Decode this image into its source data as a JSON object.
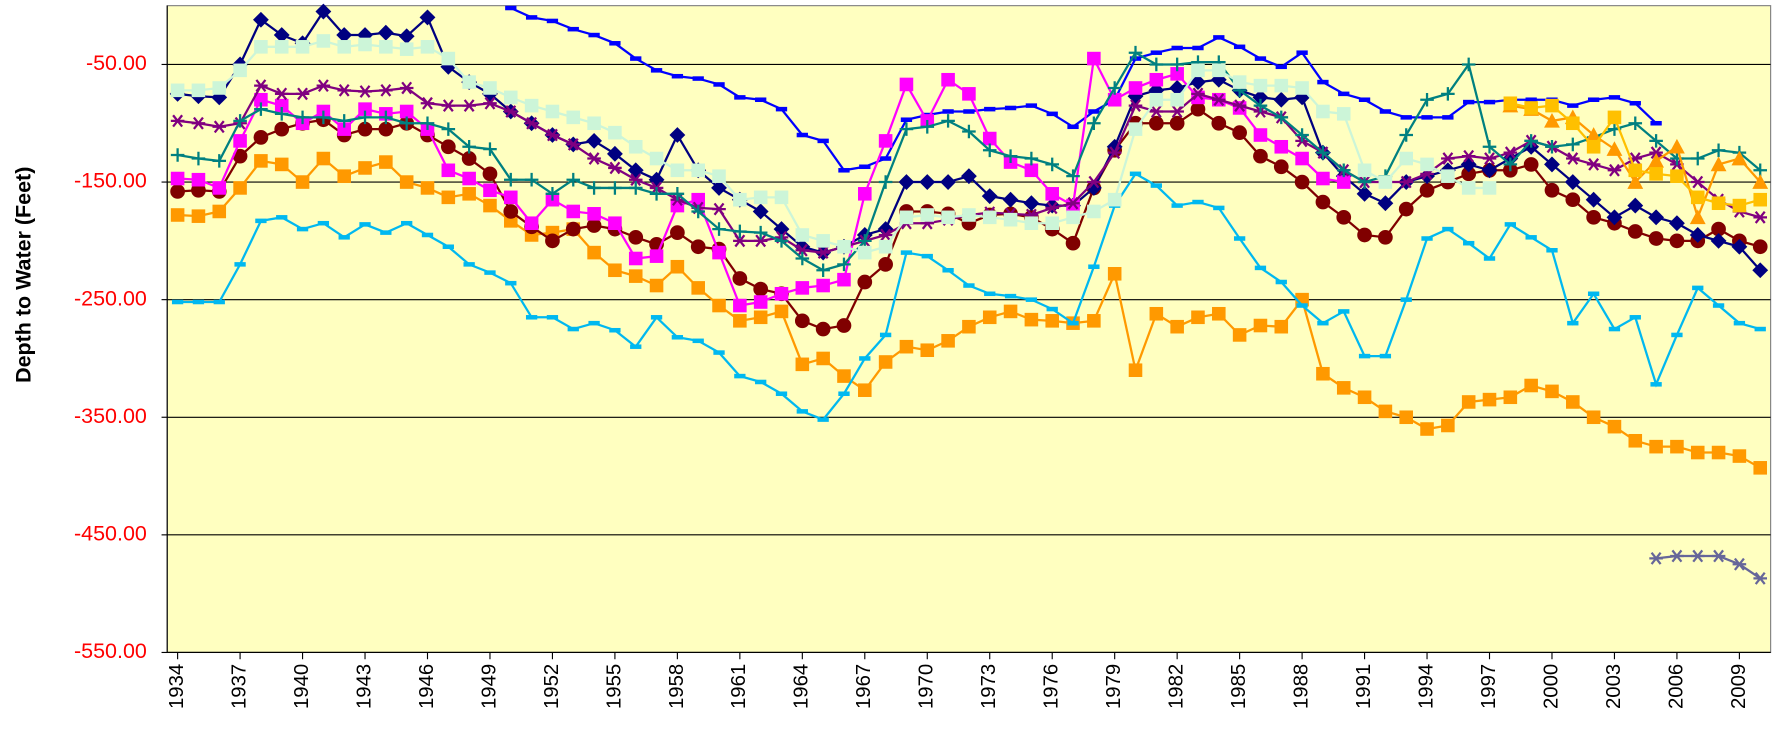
{
  "chart_data": {
    "type": "line",
    "y_label": "Depth to Water (Feet)",
    "x": [
      1934,
      1935,
      1936,
      1937,
      1938,
      1939,
      1940,
      1941,
      1942,
      1943,
      1944,
      1945,
      1946,
      1947,
      1948,
      1949,
      1950,
      1951,
      1952,
      1953,
      1954,
      1955,
      1956,
      1957,
      1958,
      1959,
      1960,
      1961,
      1962,
      1963,
      1964,
      1965,
      1966,
      1967,
      1968,
      1969,
      1970,
      1971,
      1972,
      1973,
      1974,
      1975,
      1976,
      1977,
      1978,
      1979,
      1980,
      1981,
      1982,
      1983,
      1984,
      1985,
      1986,
      1987,
      1988,
      1989,
      1990,
      1991,
      1992,
      1993,
      1994,
      1995,
      1996,
      1997,
      1998,
      1999,
      2000,
      2001,
      2002,
      2003,
      2004,
      2005,
      2006,
      2007,
      2008,
      2009,
      2010
    ],
    "xlim": [
      1933.5,
      2010.5
    ],
    "xticks": [
      1934,
      1937,
      1940,
      1943,
      1946,
      1949,
      1952,
      1955,
      1958,
      1961,
      1964,
      1967,
      1970,
      1973,
      1976,
      1979,
      1982,
      1985,
      1988,
      1991,
      1994,
      1997,
      2000,
      2003,
      2006,
      2009
    ],
    "ylim": [
      -550,
      0
    ],
    "yticks": [
      {
        "value": -50,
        "label": "-50.00"
      },
      {
        "value": -150,
        "label": "-150.00"
      },
      {
        "value": -250,
        "label": "-250.00"
      },
      {
        "value": -350,
        "label": "-350.00"
      },
      {
        "value": -450,
        "label": "-450.00"
      },
      {
        "value": -550,
        "label": "-550.00"
      }
    ],
    "grid": true,
    "background": "#ffffc0",
    "series": [
      {
        "color": "#ff9900",
        "marker": "square",
        "values": [
          -178,
          -179,
          -175,
          -155,
          -132,
          -135,
          -150,
          -130,
          -145,
          -138,
          -133,
          -150,
          -155,
          -163,
          -160,
          -170,
          -183,
          -195,
          -193,
          -190,
          -210,
          -225,
          -230,
          -238,
          -222,
          -240,
          -255,
          -268,
          -265,
          -260,
          -305,
          -300,
          -315,
          -327,
          -303,
          -290,
          -293,
          -285,
          -273,
          -265,
          -260,
          -267,
          -268,
          -270,
          -268,
          -228,
          -310,
          -262,
          -273,
          -265,
          -262,
          -280,
          -272,
          -273,
          -250,
          -313,
          -325,
          -333,
          -345,
          -350,
          -360,
          -357,
          -337,
          -335,
          -333,
          -323,
          -328,
          -337,
          -350,
          -358,
          -370,
          -375,
          -375,
          -380,
          -380,
          -383,
          -393
        ]
      },
      {
        "color": "#00b8f0",
        "marker": "dash",
        "values": [
          -252,
          -252,
          -252,
          -220,
          -183,
          -180,
          -190,
          -185,
          -197,
          -186,
          -193,
          -185,
          -195,
          -205,
          -220,
          -227,
          -236,
          -265,
          -265,
          -275,
          -270,
          -276,
          -290,
          -265,
          -282,
          -285,
          -295,
          -315,
          -320,
          -330,
          -345,
          -352,
          -330,
          -300,
          -280,
          -210,
          -213,
          -225,
          -238,
          -245,
          -247,
          -250,
          -258,
          -270,
          -222,
          -170,
          -143,
          -153,
          -170,
          -167,
          -172,
          -198,
          -223,
          -235,
          -255,
          -270,
          -260,
          -298,
          -298,
          -250,
          -198,
          -190,
          -202,
          -215,
          -186,
          -197,
          -208,
          -270,
          -245,
          -275,
          -265,
          -322,
          -280,
          -240,
          -255,
          -270,
          -275
        ]
      },
      {
        "color": "#800000",
        "marker": "circle",
        "values": [
          -158,
          -157,
          -158,
          -128,
          -112,
          -105,
          -100,
          -97,
          -110,
          -105,
          -105,
          -100,
          -110,
          -120,
          -130,
          -143,
          -175,
          -188,
          -200,
          -190,
          -187,
          -190,
          -197,
          -203,
          -193,
          -205,
          -207,
          -232,
          -241,
          -245,
          -268,
          -275,
          -272,
          -235,
          -220,
          -175,
          -175,
          -177,
          -185,
          -178,
          -177,
          -180,
          -190,
          -202,
          -155,
          -123,
          -100,
          -100,
          -100,
          -88,
          -100,
          -108,
          -128,
          -137,
          -150,
          -167,
          -180,
          -195,
          -197,
          -173,
          -157,
          -150,
          -143,
          -140,
          -140,
          -135,
          -157,
          -165,
          -180,
          -185,
          -192,
          -198,
          -200,
          -200,
          -190,
          -200,
          -205
        ]
      },
      {
        "color": "#000080",
        "marker": "diamond",
        "values": [
          -75,
          -77,
          -78,
          -50,
          -12,
          -25,
          -32,
          -5,
          -25,
          -25,
          -23,
          -26,
          -10,
          -52,
          -65,
          -75,
          -90,
          -100,
          -110,
          -118,
          -115,
          -126,
          -140,
          -148,
          -110,
          -140,
          -155,
          -165,
          -175,
          -190,
          -205,
          -210,
          -205,
          -195,
          -190,
          -150,
          -150,
          -150,
          -145,
          -162,
          -165,
          -168,
          -170,
          -170,
          -155,
          -120,
          -77,
          -72,
          -70,
          -65,
          -63,
          -72,
          -78,
          -80,
          -78,
          -125,
          -145,
          -160,
          -168,
          -150,
          -145,
          -140,
          -135,
          -140,
          -130,
          -120,
          -135,
          -150,
          -165,
          -180,
          -170,
          -180,
          -185,
          -195,
          -200,
          -205,
          -225
        ]
      },
      {
        "color": "#0000ff",
        "marker": "dash",
        "values": [
          null,
          null,
          null,
          null,
          null,
          null,
          null,
          null,
          null,
          null,
          null,
          null,
          null,
          null,
          null,
          null,
          -2,
          -10,
          -13,
          -20,
          -25,
          -32,
          -45,
          -55,
          -60,
          -62,
          -67,
          -78,
          -80,
          -88,
          -110,
          -115,
          -140,
          -137,
          -130,
          -97,
          -93,
          -90,
          -90,
          -88,
          -87,
          -85,
          -92,
          -103,
          -90,
          -80,
          -45,
          -40,
          -36,
          -36,
          -27,
          -35,
          -45,
          -52,
          -40,
          -65,
          -75,
          -80,
          -90,
          -95,
          -95,
          -95,
          -82,
          -82,
          -80,
          -80,
          -80,
          -85,
          -80,
          -78,
          -83,
          -100,
          null,
          null,
          null,
          null,
          null
        ]
      },
      {
        "color": "#ff00ff",
        "marker": "square",
        "values": [
          -147,
          -148,
          -155,
          -115,
          -80,
          -85,
          -100,
          -90,
          -105,
          -88,
          -92,
          -90,
          -105,
          -140,
          -147,
          -157,
          -163,
          -185,
          -165,
          -175,
          -177,
          -185,
          -215,
          -213,
          -170,
          -165,
          -210,
          -255,
          -252,
          -245,
          -240,
          -238,
          -233,
          -160,
          -115,
          -67,
          -98,
          -63,
          -75,
          -113,
          -133,
          -140,
          -160,
          -170,
          -45,
          -80,
          -70,
          -63,
          -58,
          -78,
          -80,
          -87,
          -110,
          -120,
          -130,
          -147,
          -150,
          null,
          null,
          null,
          null,
          null,
          null,
          null,
          null,
          null,
          null,
          null,
          null,
          null,
          null,
          null,
          null,
          null,
          null,
          null,
          null
        ]
      },
      {
        "color": "#800080",
        "marker": "star",
        "values": [
          -98,
          -100,
          -103,
          -100,
          -68,
          -75,
          -75,
          -68,
          -72,
          -73,
          -72,
          -70,
          -83,
          -85,
          -85,
          -83,
          -90,
          -100,
          -110,
          -118,
          -130,
          -138,
          -148,
          -155,
          -165,
          -172,
          -173,
          -200,
          -200,
          -197,
          -208,
          -210,
          -205,
          -200,
          -195,
          -185,
          -185,
          -182,
          -178,
          -176,
          -177,
          -178,
          -172,
          -168,
          -150,
          -125,
          -85,
          -90,
          -90,
          -75,
          -80,
          -85,
          -90,
          -95,
          -115,
          -125,
          -140,
          -150,
          -150,
          -150,
          -143,
          -130,
          -128,
          -130,
          -125,
          -115,
          -120,
          -130,
          -135,
          -140,
          -130,
          -125,
          -135,
          -150,
          -165,
          -175,
          -180
        ]
      },
      {
        "color": "#008080",
        "marker": "plus",
        "values": [
          -127,
          -130,
          -132,
          -98,
          -88,
          -92,
          -95,
          -95,
          -98,
          -95,
          -95,
          -100,
          -100,
          -105,
          -120,
          -122,
          -148,
          -148,
          -160,
          -148,
          -155,
          -155,
          -155,
          -160,
          -160,
          -175,
          -190,
          -192,
          -193,
          -200,
          -215,
          -225,
          -220,
          -200,
          -150,
          -105,
          -103,
          -98,
          -107,
          -123,
          -128,
          -130,
          -135,
          -145,
          -100,
          -70,
          -40,
          -50,
          -50,
          -48,
          -48,
          -72,
          -85,
          -95,
          -110,
          -125,
          -140,
          -150,
          -145,
          -110,
          -80,
          -75,
          -50,
          -120,
          -135,
          -115,
          -120,
          -118,
          -112,
          -105,
          -100,
          -115,
          -130,
          -130,
          -123,
          -125,
          -140
        ]
      },
      {
        "color": "#ccf5d8",
        "marker": "square",
        "values": [
          -72,
          -72,
          -70,
          -55,
          -35,
          -35,
          -35,
          -30,
          -35,
          -33,
          -35,
          -37,
          -35,
          -45,
          -65,
          -70,
          -78,
          -85,
          -90,
          -95,
          -100,
          -108,
          -120,
          -130,
          -140,
          -140,
          -145,
          -165,
          -163,
          -163,
          -195,
          -200,
          -205,
          -210,
          -205,
          -180,
          -178,
          -180,
          -178,
          -180,
          -182,
          -185,
          -185,
          -180,
          -175,
          -165,
          -105,
          -80,
          -80,
          -55,
          -55,
          -65,
          -68,
          -68,
          -70,
          -90,
          -92,
          -140,
          -150,
          -130,
          -135,
          -145,
          -155,
          -155,
          null,
          null,
          null,
          null,
          null,
          null,
          null,
          null,
          null,
          null,
          null,
          null,
          null
        ]
      },
      {
        "color": "#ff9900",
        "marker": "triangle",
        "values": [
          null,
          null,
          null,
          null,
          null,
          null,
          null,
          null,
          null,
          null,
          null,
          null,
          null,
          null,
          null,
          null,
          null,
          null,
          null,
          null,
          null,
          null,
          null,
          null,
          null,
          null,
          null,
          null,
          null,
          null,
          null,
          null,
          null,
          null,
          null,
          null,
          null,
          null,
          null,
          null,
          null,
          null,
          null,
          null,
          null,
          null,
          null,
          null,
          null,
          null,
          null,
          null,
          null,
          null,
          null,
          null,
          null,
          null,
          null,
          null,
          null,
          null,
          null,
          null,
          -85,
          -88,
          -98,
          -95,
          -110,
          -122,
          -150,
          -132,
          -120,
          -180,
          -135,
          -130,
          -150
        ]
      },
      {
        "color": "#ffc000",
        "marker": "square",
        "values": [
          null,
          null,
          null,
          null,
          null,
          null,
          null,
          null,
          null,
          null,
          null,
          null,
          null,
          null,
          null,
          null,
          null,
          null,
          null,
          null,
          null,
          null,
          null,
          null,
          null,
          null,
          null,
          null,
          null,
          null,
          null,
          null,
          null,
          null,
          null,
          null,
          null,
          null,
          null,
          null,
          null,
          null,
          null,
          null,
          null,
          null,
          null,
          null,
          null,
          null,
          null,
          null,
          null,
          null,
          null,
          null,
          null,
          null,
          null,
          null,
          null,
          null,
          null,
          null,
          -83,
          -87,
          -85,
          -100,
          -120,
          -95,
          -140,
          -143,
          -145,
          -163,
          -168,
          -170,
          -165
        ]
      },
      {
        "color": "#666699",
        "marker": "star",
        "values": [
          null,
          null,
          null,
          null,
          null,
          null,
          null,
          null,
          null,
          null,
          null,
          null,
          null,
          null,
          null,
          null,
          null,
          null,
          null,
          null,
          null,
          null,
          null,
          null,
          null,
          null,
          null,
          null,
          null,
          null,
          null,
          null,
          null,
          null,
          null,
          null,
          null,
          null,
          null,
          null,
          null,
          null,
          null,
          null,
          null,
          null,
          null,
          null,
          null,
          null,
          null,
          null,
          null,
          null,
          null,
          null,
          null,
          null,
          null,
          null,
          null,
          null,
          null,
          null,
          null,
          null,
          null,
          null,
          null,
          null,
          null,
          -470,
          -468,
          -468,
          -468,
          -475,
          -487
        ]
      }
    ]
  }
}
